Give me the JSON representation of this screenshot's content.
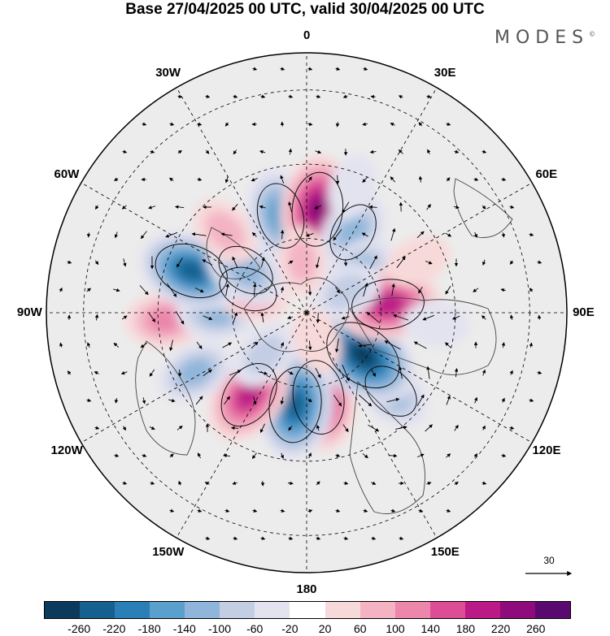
{
  "title": "Base 27/04/2025 00 UTC, valid 30/04/2025 00 UTC",
  "brand": "MODES",
  "brand_mark": "©",
  "longitude_labels": [
    {
      "text": "180",
      "lon": 180
    },
    {
      "text": "150E",
      "lon": 150
    },
    {
      "text": "120E",
      "lon": 120
    },
    {
      "text": "90E",
      "lon": 90
    },
    {
      "text": "60E",
      "lon": 60
    },
    {
      "text": "30E",
      "lon": 30
    },
    {
      "text": "0",
      "lon": 0
    },
    {
      "text": "30W",
      "lon": -30
    },
    {
      "text": "60W",
      "lon": -60
    },
    {
      "text": "90W",
      "lon": -90
    },
    {
      "text": "120W",
      "lon": -120
    },
    {
      "text": "150W",
      "lon": -150
    }
  ],
  "reference_vector": {
    "value": "30",
    "icon": "arrow-right-icon"
  },
  "colorbar": {
    "colors": [
      "#0c3a5c",
      "#15608f",
      "#2a7fb6",
      "#5b9fcd",
      "#8fb6da",
      "#c3cde4",
      "#e3e3f0",
      "#ffffff",
      "#f8d9d9",
      "#f3b3c3",
      "#ec86ab",
      "#dc4d96",
      "#bb1a86",
      "#8f0a7a",
      "#5a0a6e"
    ],
    "ticks": [
      "-260",
      "-220",
      "-180",
      "-140",
      "-100",
      "-60",
      "-20",
      "20",
      "60",
      "100",
      "140",
      "180",
      "220",
      "260"
    ]
  },
  "anomalies": [
    {
      "lon": 172,
      "colat": 23,
      "value": 230
    },
    {
      "lon": -173,
      "colat": 25,
      "value": -240
    },
    {
      "lon": 133,
      "colat": 31,
      "value": -140
    },
    {
      "lon": 127,
      "colat": 19,
      "value": -270
    },
    {
      "lon": -145,
      "colat": 27,
      "value": 200
    },
    {
      "lon": -118,
      "colat": 34,
      "value": -110
    },
    {
      "lon": -135,
      "colat": 16,
      "value": -90
    },
    {
      "lon": -93,
      "colat": 38,
      "value": 120
    },
    {
      "lon": -90,
      "colat": 24,
      "value": -120
    },
    {
      "lon": -68,
      "colat": 17,
      "value": 140
    },
    {
      "lon": -70,
      "colat": 33,
      "value": -230
    },
    {
      "lon": -55,
      "colat": 20,
      "value": -140
    },
    {
      "lon": -45,
      "colat": 31,
      "value": 90
    },
    {
      "lon": -15,
      "colat": 27,
      "value": -180
    },
    {
      "lon": 6,
      "colat": 28,
      "value": 230
    },
    {
      "lon": 30,
      "colat": 25,
      "value": -140
    },
    {
      "lon": 51,
      "colat": 18,
      "value": -110
    },
    {
      "lon": 84,
      "colat": 22,
      "value": 220
    },
    {
      "lon": 62,
      "colat": 12,
      "value": -90
    },
    {
      "lon": 95,
      "colat": 35,
      "value": -60
    },
    {
      "lon": 65,
      "colat": 33,
      "value": 60
    },
    {
      "lon": -5,
      "colat": 14,
      "value": 70
    },
    {
      "lon": 160,
      "colat": 8,
      "value": 60
    },
    {
      "lon": 20,
      "colat": 36,
      "value": -60
    }
  ]
}
